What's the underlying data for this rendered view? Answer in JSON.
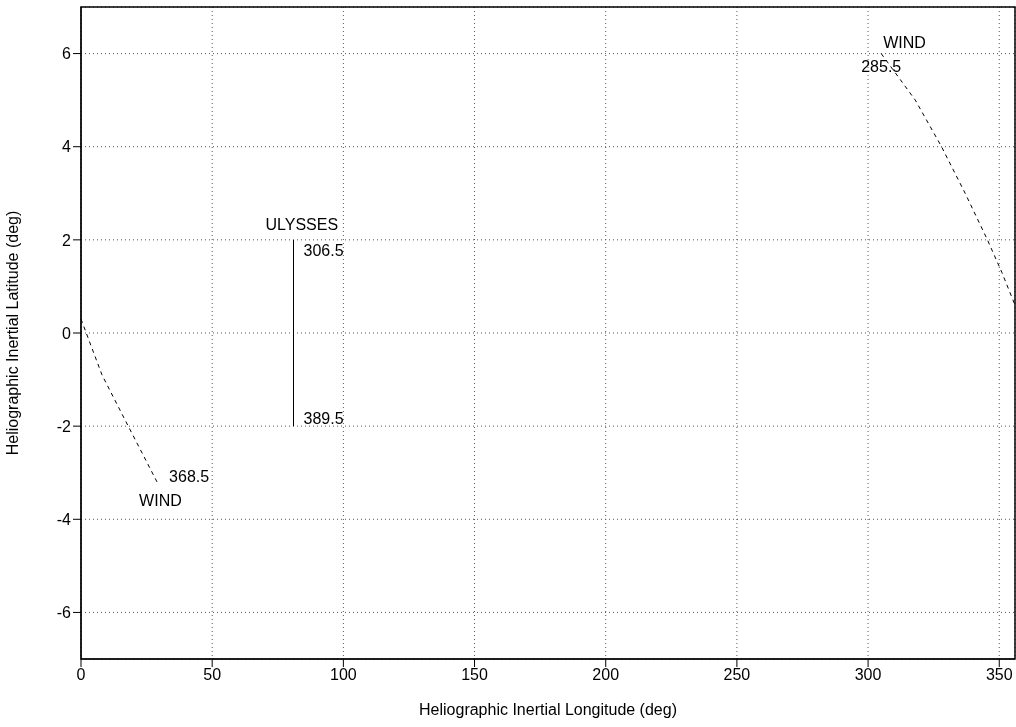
{
  "chart_data": {
    "type": "line",
    "xlabel": "Heliographic Inertial Longitude (deg)",
    "ylabel": "Heliographic Inertial Latitude (deg)",
    "xlim": [
      0,
      356
    ],
    "xticks": [
      0,
      50,
      100,
      150,
      200,
      250,
      300,
      350
    ],
    "ylim": [
      -7,
      7
    ],
    "yticks": [
      -6,
      -4,
      -2,
      0,
      2,
      4,
      6
    ],
    "grid": true,
    "series": [
      {
        "color": "#000000",
        "line_style": "dashed",
        "x": [
          0,
          8,
          18,
          29
        ],
        "values": [
          0.3,
          -0.9,
          -2.0,
          -3.2
        ]
      },
      {
        "color": "#000000",
        "line_style": "dashed",
        "x": [
          305,
          318,
          328,
          337,
          345.5,
          351,
          356
        ],
        "values": [
          6.0,
          5.0,
          4.0,
          3.0,
          2.0,
          1.3,
          0.6
        ]
      },
      {
        "color": "#000000",
        "line_style": "solid",
        "x": [
          81,
          81
        ],
        "values": [
          2,
          -2
        ]
      }
    ],
    "annotations": [
      {
        "text": "ULYSSES",
        "x": 81,
        "y": 2
      },
      {
        "text": "306.5",
        "x": 81,
        "y": 2
      },
      {
        "text": "389.5",
        "x": 81,
        "y": -2
      },
      {
        "text": "WIND",
        "x": 305,
        "y": 6.0
      },
      {
        "text": "285.5",
        "x": 305,
        "y": 6.0
      },
      {
        "text": "368.5",
        "x": 29,
        "y": -3.2
      },
      {
        "text": "WIND",
        "x": 29,
        "y": -3.2
      }
    ]
  }
}
